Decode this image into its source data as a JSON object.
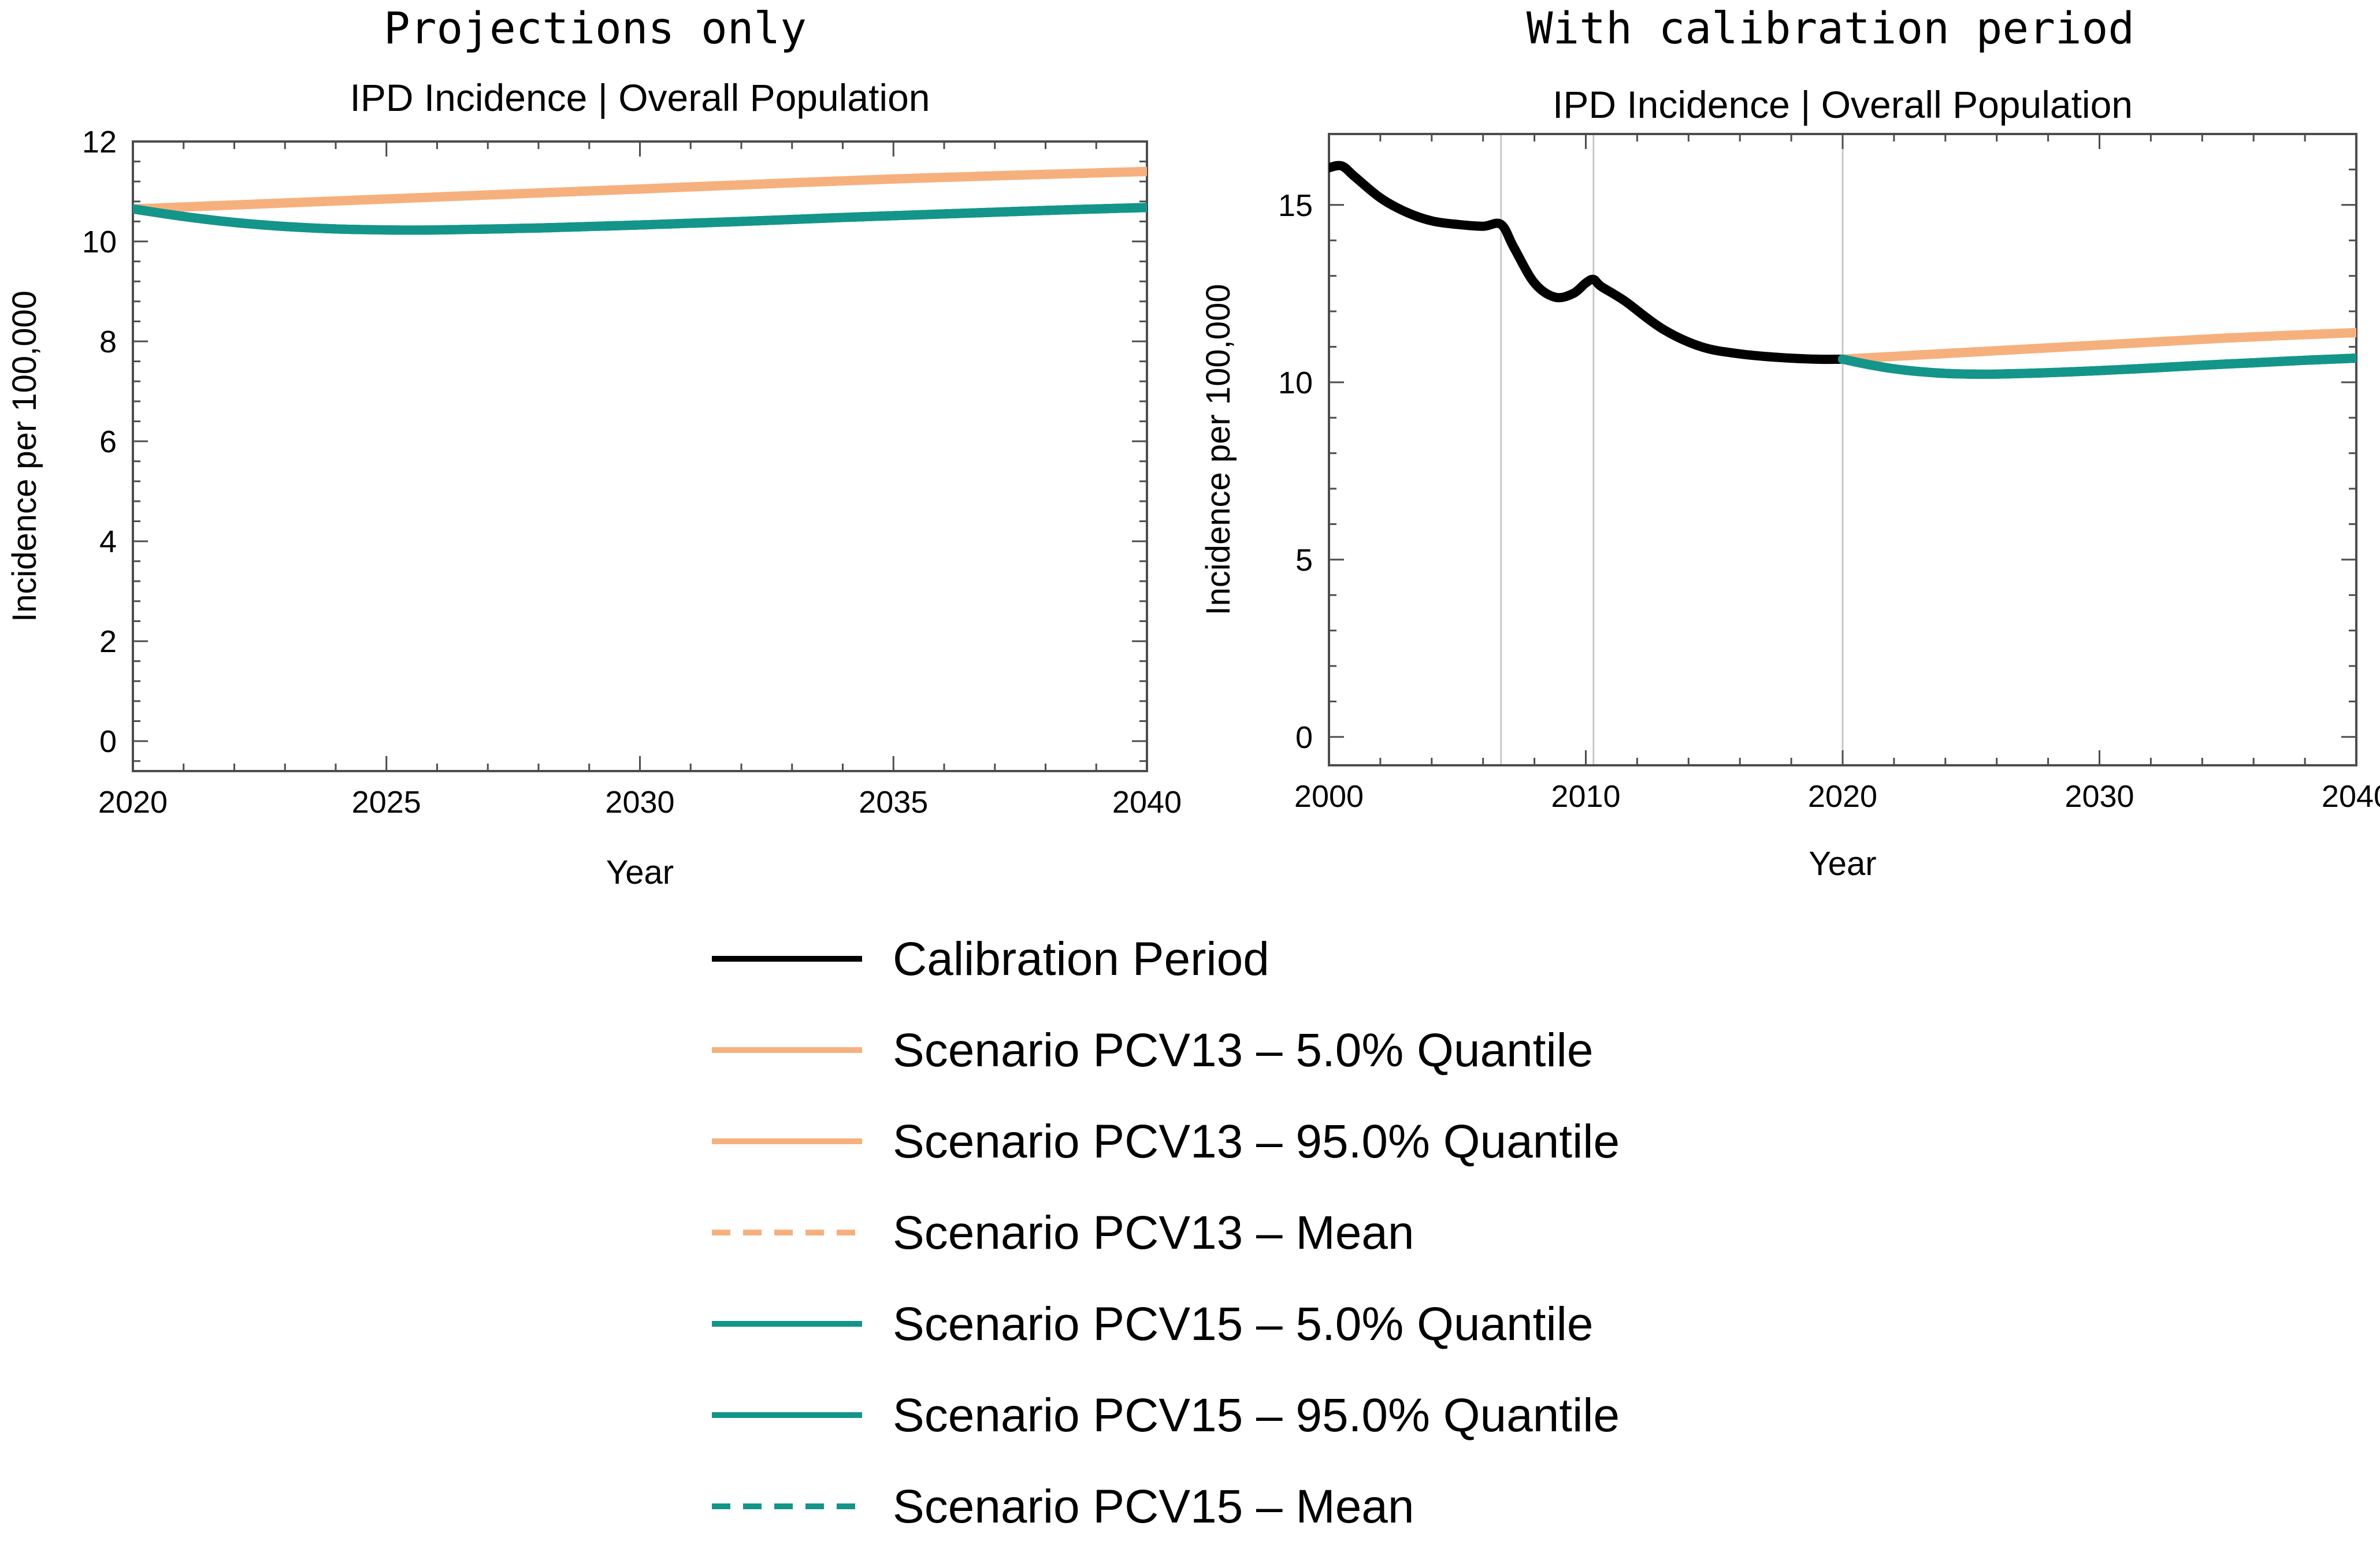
{
  "chart_data": [
    {
      "type": "line",
      "panel_heading": "Projections only",
      "title": "IPD Incidence | Overall Population",
      "xlabel": "Year",
      "ylabel": "Incidence per 100,000",
      "xlim": [
        2020,
        2040
      ],
      "ylim": [
        -0.6,
        12
      ],
      "xticks": [
        2020,
        2025,
        2030,
        2035,
        2040
      ],
      "yticks": [
        0,
        2,
        4,
        6,
        8,
        10,
        12
      ],
      "grid": false,
      "series": [
        {
          "name": "Scenario PCV13 – 5.0% Quantile",
          "color": "#f6b07e",
          "dash": "solid",
          "x": [
            2020,
            2025,
            2030,
            2035,
            2040
          ],
          "y": [
            10.65,
            10.85,
            11.05,
            11.25,
            11.4
          ]
        },
        {
          "name": "Scenario PCV13 – 95.0% Quantile",
          "color": "#f6b07e",
          "dash": "solid",
          "x": [
            2020,
            2025,
            2030,
            2035,
            2040
          ],
          "y": [
            10.65,
            10.85,
            11.05,
            11.25,
            11.4
          ]
        },
        {
          "name": "Scenario PCV13 – Mean",
          "color": "#f6b07e",
          "dash": "dashed",
          "x": [
            2020,
            2025,
            2030,
            2035,
            2040
          ],
          "y": [
            10.65,
            10.85,
            11.05,
            11.25,
            11.4
          ]
        },
        {
          "name": "Scenario PCV15 – 5.0% Quantile",
          "color": "#14958a",
          "dash": "solid",
          "x": [
            2020,
            2021,
            2022,
            2023,
            2024,
            2025,
            2026,
            2028,
            2030,
            2032,
            2034,
            2036,
            2038,
            2040
          ],
          "y": [
            10.65,
            10.5,
            10.38,
            10.3,
            10.25,
            10.23,
            10.23,
            10.27,
            10.33,
            10.4,
            10.48,
            10.55,
            10.62,
            10.68
          ]
        },
        {
          "name": "Scenario PCV15 – 95.0% Quantile",
          "color": "#14958a",
          "dash": "solid",
          "x": [
            2020,
            2021,
            2022,
            2023,
            2024,
            2025,
            2026,
            2028,
            2030,
            2032,
            2034,
            2036,
            2038,
            2040
          ],
          "y": [
            10.65,
            10.5,
            10.38,
            10.3,
            10.25,
            10.23,
            10.23,
            10.27,
            10.33,
            10.4,
            10.48,
            10.55,
            10.62,
            10.68
          ]
        },
        {
          "name": "Scenario PCV15 – Mean",
          "color": "#14958a",
          "dash": "dashed",
          "x": [
            2020,
            2021,
            2022,
            2023,
            2024,
            2025,
            2026,
            2028,
            2030,
            2032,
            2034,
            2036,
            2038,
            2040
          ],
          "y": [
            10.65,
            10.5,
            10.38,
            10.3,
            10.25,
            10.23,
            10.23,
            10.27,
            10.33,
            10.4,
            10.48,
            10.55,
            10.62,
            10.68
          ]
        }
      ]
    },
    {
      "type": "line",
      "panel_heading": "With calibration period",
      "title": "IPD Incidence | Overall Population",
      "xlabel": "Year",
      "ylabel": "Incidence per 100,000",
      "xlim": [
        2000,
        2040
      ],
      "ylim": [
        -0.8,
        17
      ],
      "xticks": [
        2000,
        2010,
        2020,
        2030,
        2040
      ],
      "yticks": [
        0,
        5,
        10,
        15
      ],
      "grid": false,
      "vlines": [
        2006.7,
        2010.3,
        2020
      ],
      "series": [
        {
          "name": "Calibration Period",
          "color": "#000000",
          "dash": "solid",
          "x": [
            2000,
            2000.5,
            2001,
            2002,
            2003,
            2004,
            2005,
            2006,
            2006.7,
            2007.2,
            2008,
            2008.8,
            2009.5,
            2010,
            2010.3,
            2010.6,
            2011.5,
            2013,
            2014.5,
            2016,
            2017.5,
            2019,
            2020
          ],
          "y": [
            16.05,
            16.1,
            15.8,
            15.2,
            14.8,
            14.55,
            14.45,
            14.4,
            14.45,
            13.8,
            12.8,
            12.4,
            12.5,
            12.8,
            12.9,
            12.7,
            12.3,
            11.5,
            11.0,
            10.8,
            10.7,
            10.65,
            10.65
          ]
        },
        {
          "name": "Scenario PCV13 – 5.0% Quantile",
          "color": "#f6b07e",
          "dash": "solid",
          "x": [
            2020,
            2025,
            2030,
            2035,
            2040
          ],
          "y": [
            10.65,
            10.85,
            11.05,
            11.25,
            11.4
          ]
        },
        {
          "name": "Scenario PCV13 – 95.0% Quantile",
          "color": "#f6b07e",
          "dash": "solid",
          "x": [
            2020,
            2025,
            2030,
            2035,
            2040
          ],
          "y": [
            10.65,
            10.85,
            11.05,
            11.25,
            11.4
          ]
        },
        {
          "name": "Scenario PCV13 – Mean",
          "color": "#f6b07e",
          "dash": "dashed",
          "x": [
            2020,
            2025,
            2030,
            2035,
            2040
          ],
          "y": [
            10.65,
            10.85,
            11.05,
            11.25,
            11.4
          ]
        },
        {
          "name": "Scenario PCV15 – 5.0% Quantile",
          "color": "#14958a",
          "dash": "solid",
          "x": [
            2020,
            2021,
            2022,
            2023,
            2024,
            2025,
            2026,
            2028,
            2030,
            2032,
            2034,
            2036,
            2038,
            2040
          ],
          "y": [
            10.65,
            10.5,
            10.38,
            10.3,
            10.25,
            10.23,
            10.23,
            10.27,
            10.33,
            10.4,
            10.48,
            10.55,
            10.62,
            10.68
          ]
        },
        {
          "name": "Scenario PCV15 – 95.0% Quantile",
          "color": "#14958a",
          "dash": "solid",
          "x": [
            2020,
            2021,
            2022,
            2023,
            2024,
            2025,
            2026,
            2028,
            2030,
            2032,
            2034,
            2036,
            2038,
            2040
          ],
          "y": [
            10.65,
            10.5,
            10.38,
            10.3,
            10.25,
            10.23,
            10.23,
            10.27,
            10.33,
            10.4,
            10.48,
            10.55,
            10.62,
            10.68
          ]
        },
        {
          "name": "Scenario PCV15 – Mean",
          "color": "#14958a",
          "dash": "dashed",
          "x": [
            2020,
            2021,
            2022,
            2023,
            2024,
            2025,
            2026,
            2028,
            2030,
            2032,
            2034,
            2036,
            2038,
            2040
          ],
          "y": [
            10.65,
            10.5,
            10.38,
            10.3,
            10.25,
            10.23,
            10.23,
            10.27,
            10.33,
            10.4,
            10.48,
            10.55,
            10.62,
            10.68
          ]
        }
      ]
    }
  ],
  "legend": {
    "position": "bottom-center",
    "items": [
      {
        "label": "Calibration Period",
        "color": "#000000",
        "dash": "solid"
      },
      {
        "label": "Scenario PCV13 – 5.0% Quantile",
        "color": "#f6b07e",
        "dash": "solid"
      },
      {
        "label": "Scenario PCV13 – 95.0% Quantile",
        "color": "#f6b07e",
        "dash": "solid"
      },
      {
        "label": "Scenario PCV13 – Mean",
        "color": "#f6b07e",
        "dash": "dashed"
      },
      {
        "label": "Scenario PCV15 – 5.0% Quantile",
        "color": "#14958a",
        "dash": "solid"
      },
      {
        "label": "Scenario PCV15 – 95.0% Quantile",
        "color": "#14958a",
        "dash": "solid"
      },
      {
        "label": "Scenario PCV15 – Mean",
        "color": "#14958a",
        "dash": "dashed"
      }
    ]
  }
}
